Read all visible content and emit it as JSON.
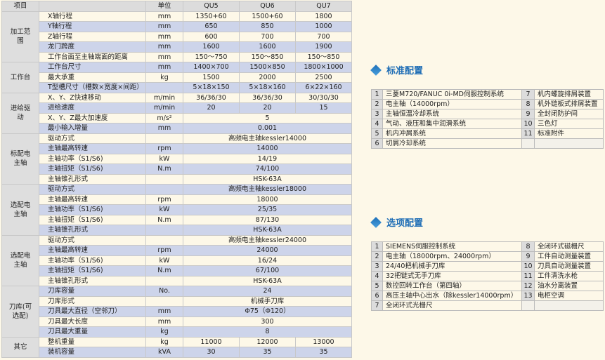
{
  "spec": {
    "header": [
      "项目",
      "",
      "单位",
      "QU5",
      "QU6",
      "QU7"
    ],
    "groups": [
      {
        "name": "加工范围",
        "rows": [
          [
            "X轴行程",
            "mm",
            "1350+60",
            "1500+60",
            "1800"
          ],
          [
            "Y轴行程",
            "mm",
            "650",
            "850",
            "1000"
          ],
          [
            "Z轴行程",
            "mm",
            "600",
            "700",
            "700"
          ],
          [
            "龙门跨度",
            "mm",
            "1600",
            "1600",
            "1900"
          ],
          [
            "工作台面至主轴端面的距离",
            "mm",
            "150～750",
            "150～850",
            "150～850"
          ]
        ]
      },
      {
        "name": "工作台",
        "rows": [
          [
            "工作台尺寸",
            "mm",
            "1400×700",
            "1500×850",
            "1800×1000"
          ],
          [
            "最大承重",
            "kg",
            "1500",
            "2000",
            "2500"
          ],
          [
            "T型槽尺寸（槽数×宽度×间距）",
            "",
            "5×18×150",
            "5×18×160",
            "6×22×160"
          ]
        ]
      },
      {
        "name": "进给驱动",
        "rows": [
          [
            "X、Y、Z快速移动",
            "m/min",
            "36/36/30",
            "36/36/30",
            "30/30/30"
          ],
          [
            "进给速度",
            "m/min",
            "20",
            "20",
            "15"
          ],
          [
            "X、Y、Z最大加速度",
            "m/s²",
            "5"
          ],
          [
            "最小输入增量",
            "mm",
            "0.001"
          ]
        ]
      },
      {
        "name": "标配电主轴",
        "rows": [
          [
            "驱动方式",
            "",
            "高频电主轴kessler14000"
          ],
          [
            "主轴最高转速",
            "rpm",
            "14000"
          ],
          [
            "主轴功率（S1/S6)",
            "kW",
            "14/19"
          ],
          [
            "主轴扭矩（S1/S6)",
            "N.m",
            "74/100"
          ],
          [
            "主轴锥孔形式",
            "",
            "HSK-63A"
          ]
        ]
      },
      {
        "name": "选配电主轴",
        "rows": [
          [
            "驱动方式",
            "",
            "高频电主轴kessler18000"
          ],
          [
            "主轴最高转速",
            "rpm",
            "18000"
          ],
          [
            "主轴功率（S1/S6)",
            "kW",
            "25/35"
          ],
          [
            "主轴扭矩（S1/S6)",
            "N.m",
            "87/130"
          ],
          [
            "主轴锥孔形式",
            "",
            "HSK-63A"
          ]
        ]
      },
      {
        "name": "选配电主轴",
        "rows": [
          [
            "驱动方式",
            "",
            "高频电主轴kessler24000"
          ],
          [
            "主轴最高转速",
            "rpm",
            "24000"
          ],
          [
            "主轴功率（S1/S6)",
            "kW",
            "16/24"
          ],
          [
            "主轴扭矩（S1/S6)",
            "N.m",
            "67/100"
          ],
          [
            "主轴锥孔形式",
            "",
            "HSK-63A"
          ]
        ]
      },
      {
        "name": "刀库(可选配)",
        "rows": [
          [
            "刀库容量",
            "No.",
            "24"
          ],
          [
            "刀库形式",
            "",
            "机械手刀库"
          ],
          [
            "刀具最大直径（空邻刀）",
            "mm",
            "Φ75（Φ120）"
          ],
          [
            "刀具最大长度",
            "mm",
            "300"
          ],
          [
            "刀具最大重量",
            "kg",
            "8"
          ]
        ]
      },
      {
        "name": "其它",
        "rows": [
          [
            "整机重量",
            "kg",
            "11000",
            "12000",
            "13000"
          ],
          [
            "装机容量",
            "kVA",
            "30",
            "35",
            "35"
          ]
        ]
      }
    ]
  },
  "standard": {
    "title": "标准配置",
    "left": [
      [
        "1",
        "三菱M720/FANUC 0i-MD伺服控制系统"
      ],
      [
        "2",
        "电主轴（14000rpm）"
      ],
      [
        "3",
        "主轴恒温冷却系统"
      ],
      [
        "4",
        "气动、液压和集中润滑系统"
      ],
      [
        "5",
        "机内冲屑系统"
      ],
      [
        "6",
        "切屑冷却系统"
      ]
    ],
    "right": [
      [
        "7",
        "机内螺旋排屑装置"
      ],
      [
        "8",
        "机外链板式排屑装置"
      ],
      [
        "9",
        "全封闭防护间"
      ],
      [
        "10",
        "三色灯"
      ],
      [
        "11",
        "标准附件"
      ]
    ]
  },
  "options": {
    "title": "选项配置",
    "left": [
      [
        "1",
        "SIEMENS伺服控制系统"
      ],
      [
        "2",
        "电主轴（18000rpm、24000rpm）"
      ],
      [
        "3",
        "24/40把机械手刀库"
      ],
      [
        "4",
        "32把链式无手刀库"
      ],
      [
        "5",
        "数控回转工作台（第四轴）"
      ],
      [
        "6",
        "高压主轴中心出水（除kessler14000rpm）"
      ],
      [
        "7",
        "全闭环式光栅尺"
      ]
    ],
    "right": [
      [
        "8",
        "全闭环式磁栅尺"
      ],
      [
        "9",
        "工件自动测量装置"
      ],
      [
        "10",
        "刀具自动测量装置"
      ],
      [
        "11",
        "工件清洗水枪"
      ],
      [
        "12",
        "油水分离装置"
      ],
      [
        "13",
        "电柜空调"
      ]
    ]
  },
  "colors": {
    "accent": "#1e6db5",
    "row_alt": "#cdd4ea",
    "row_base": "#fdf8e8",
    "group": "#dedede"
  }
}
